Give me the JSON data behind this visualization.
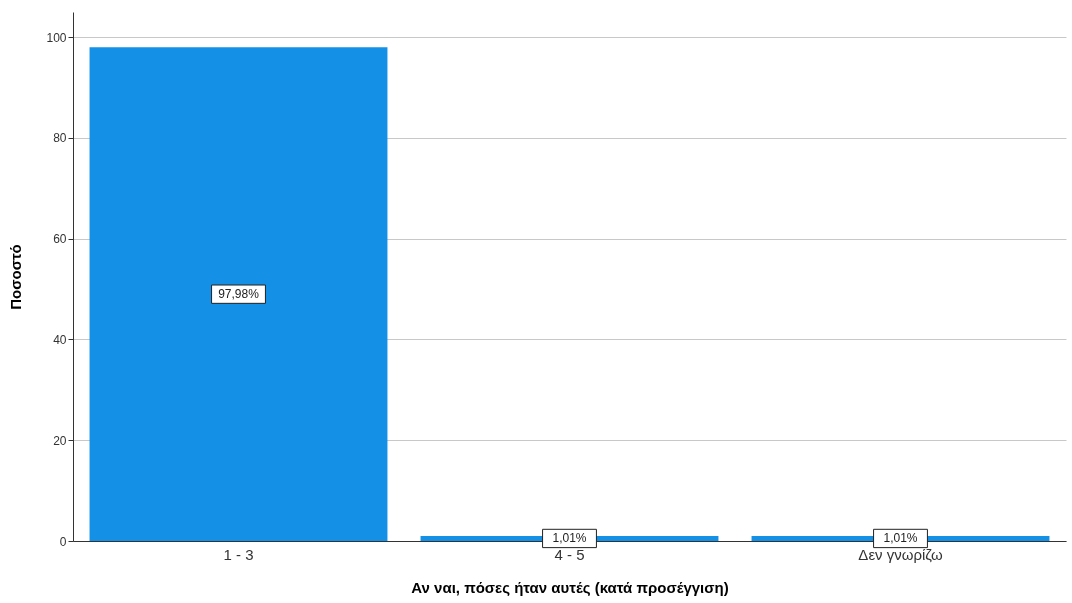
{
  "chart_data": {
    "type": "bar",
    "xlabel": "Αν ναι, πόσες ήταν αυτές (κατά προσέγγιση)",
    "ylabel": "Ποσοστό",
    "categories": [
      "1 - 3",
      "4 - 5",
      "Δεν γνωρίζω"
    ],
    "values": [
      97.98,
      1.01,
      1.01
    ],
    "value_labels": [
      "97,98%",
      "1,01%",
      "1,01%"
    ],
    "color": "#1490e6",
    "ylim": [
      0,
      105
    ],
    "yticks": [
      0,
      20,
      40,
      60,
      80,
      100
    ],
    "grid": "y"
  }
}
